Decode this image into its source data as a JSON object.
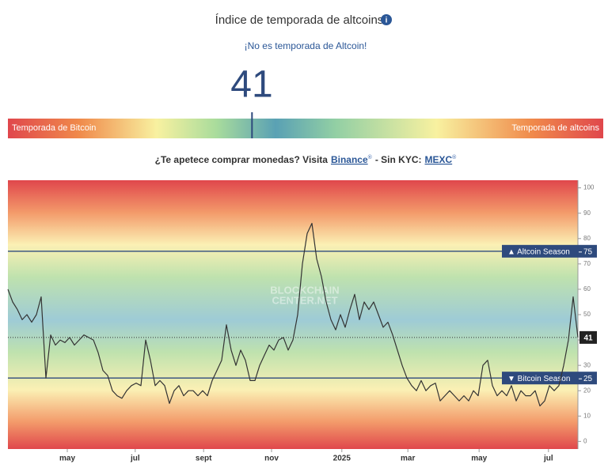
{
  "header": {
    "title": "Índice de temporada de altcoins",
    "status": "¡No es temporada de Altcoin!",
    "index_value": 41,
    "left_label": "Temporada de Bitcoin",
    "right_label": "Temporada de altcoins"
  },
  "promo": {
    "prefix": "¿Te apetece comprar monedas? Visita",
    "link1": "Binance",
    "mid": "- Sin KYC:",
    "link2": "MEXC",
    "mark": "®"
  },
  "chart_data": {
    "type": "line",
    "watermark": [
      "BLOCKCHAIN",
      "CENTER.NET"
    ],
    "xlim": [
      0,
      120
    ],
    "ylim": [
      -3,
      103
    ],
    "xticks": [
      {
        "value": 12.5,
        "label": "may"
      },
      {
        "value": 26.8,
        "label": "jul"
      },
      {
        "value": 41.2,
        "label": "sept"
      },
      {
        "value": 55.5,
        "label": "nov"
      },
      {
        "value": 70.3,
        "label": "2025"
      },
      {
        "value": 84.2,
        "label": "mar"
      },
      {
        "value": 99.2,
        "label": "may"
      },
      {
        "value": 113.8,
        "label": "jul"
      }
    ],
    "yticks": [
      0,
      10,
      20,
      30,
      40,
      50,
      60,
      70,
      80,
      90,
      100
    ],
    "thresholds": [
      {
        "text": "▲ Altcoin Season",
        "value": 75
      },
      {
        "text": "▼ Bitcoin Season",
        "value": 25
      }
    ],
    "threshold_color": "#2e4a7d",
    "series": [
      {
        "color": "#333333",
        "x": [
          0,
          1,
          2,
          3,
          4,
          5,
          6,
          7,
          8,
          9,
          10,
          11,
          12,
          13,
          14,
          15,
          16,
          17,
          18,
          19,
          20,
          21,
          22,
          23,
          24,
          25,
          26,
          27,
          28,
          29,
          30,
          31,
          32,
          33,
          34,
          35,
          36,
          37,
          38,
          39,
          40,
          41,
          42,
          43,
          44,
          45,
          46,
          47,
          48,
          49,
          50,
          51,
          52,
          53,
          54,
          55,
          56,
          57,
          58,
          59,
          60,
          61,
          62,
          63,
          64,
          65,
          66,
          67,
          68,
          69,
          70,
          71,
          72,
          73,
          74,
          75,
          76,
          77,
          78,
          79,
          80,
          81,
          82,
          83,
          84,
          85,
          86,
          87,
          88,
          89,
          90,
          91,
          92,
          93,
          94,
          95,
          96,
          97,
          98,
          99,
          100,
          101,
          102,
          103,
          104,
          105,
          106,
          107,
          108,
          109,
          110,
          111,
          112,
          113,
          114,
          115,
          116,
          117,
          118,
          119,
          120
        ],
        "values": [
          60,
          55,
          52,
          48,
          50,
          47,
          50,
          57,
          25,
          42,
          38,
          40,
          39,
          41,
          38,
          40,
          42,
          41,
          40,
          35,
          28,
          26,
          20,
          18,
          17,
          20,
          22,
          23,
          22,
          40,
          32,
          22,
          24,
          22,
          15,
          20,
          22,
          18,
          20,
          20,
          18,
          20,
          18,
          24,
          28,
          32,
          46,
          36,
          30,
          36,
          32,
          24,
          24,
          30,
          34,
          38,
          36,
          40,
          41,
          36,
          40,
          50,
          70,
          82,
          86,
          72,
          65,
          55,
          48,
          44,
          50,
          45,
          52,
          58,
          48,
          55,
          52,
          55,
          50,
          45,
          47,
          42,
          36,
          30,
          25,
          22,
          20,
          24,
          20,
          22,
          23,
          16,
          18,
          20,
          18,
          16,
          18,
          16,
          20,
          18,
          30,
          32,
          22,
          18,
          20,
          18,
          22,
          16,
          20,
          18,
          18,
          20,
          14,
          16,
          22,
          20,
          22,
          30,
          40,
          57,
          41
        ]
      }
    ]
  }
}
